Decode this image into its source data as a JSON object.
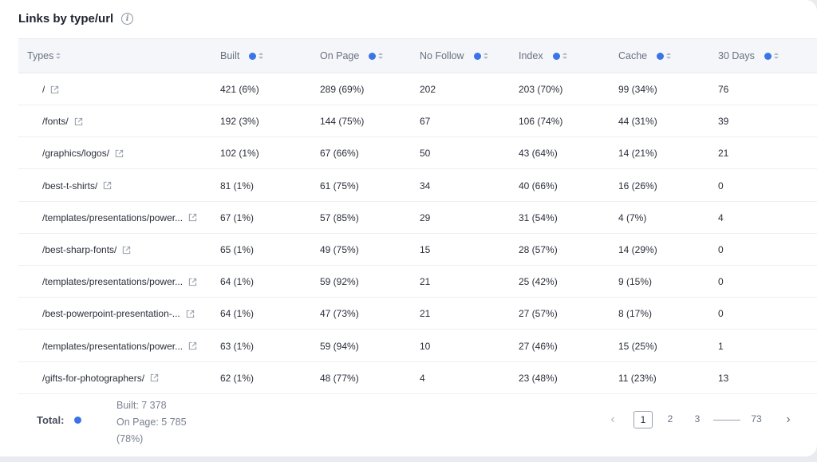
{
  "title": "Links by type/url",
  "columns": [
    {
      "label": "Types",
      "help": false
    },
    {
      "label": "Built",
      "help": true
    },
    {
      "label": "On Page",
      "help": true
    },
    {
      "label": "No Follow",
      "help": true
    },
    {
      "label": "Index",
      "help": true
    },
    {
      "label": "Cache",
      "help": true
    },
    {
      "label": "30 Days",
      "help": true
    }
  ],
  "rows": [
    {
      "url": "/",
      "built": "421 (6%)",
      "on_page": "289 (69%)",
      "no_follow": "202",
      "index": "203 (70%)",
      "cache": "99 (34%)",
      "days30": "76"
    },
    {
      "url": "/fonts/",
      "built": "192 (3%)",
      "on_page": "144 (75%)",
      "no_follow": "67",
      "index": "106 (74%)",
      "cache": "44 (31%)",
      "days30": "39"
    },
    {
      "url": "/graphics/logos/",
      "built": "102 (1%)",
      "on_page": "67 (66%)",
      "no_follow": "50",
      "index": "43 (64%)",
      "cache": "14 (21%)",
      "days30": "21"
    },
    {
      "url": "/best-t-shirts/",
      "built": "81 (1%)",
      "on_page": "61 (75%)",
      "no_follow": "34",
      "index": "40 (66%)",
      "cache": "16 (26%)",
      "days30": "0"
    },
    {
      "url": "/templates/presentations/power...",
      "built": "67 (1%)",
      "on_page": "57 (85%)",
      "no_follow": "29",
      "index": "31 (54%)",
      "cache": "4 (7%)",
      "days30": "4"
    },
    {
      "url": "/best-sharp-fonts/",
      "built": "65 (1%)",
      "on_page": "49 (75%)",
      "no_follow": "15",
      "index": "28 (57%)",
      "cache": "14 (29%)",
      "days30": "0"
    },
    {
      "url": "/templates/presentations/power...",
      "built": "64 (1%)",
      "on_page": "59 (92%)",
      "no_follow": "21",
      "index": "25 (42%)",
      "cache": "9 (15%)",
      "days30": "0"
    },
    {
      "url": "/best-powerpoint-presentation-...",
      "built": "64 (1%)",
      "on_page": "47 (73%)",
      "no_follow": "21",
      "index": "27 (57%)",
      "cache": "8 (17%)",
      "days30": "0"
    },
    {
      "url": "/templates/presentations/power...",
      "built": "63 (1%)",
      "on_page": "59 (94%)",
      "no_follow": "10",
      "index": "27 (46%)",
      "cache": "15 (25%)",
      "days30": "1"
    },
    {
      "url": "/gifts-for-photographers/",
      "built": "62 (1%)",
      "on_page": "48 (77%)",
      "no_follow": "4",
      "index": "23 (48%)",
      "cache": "11 (23%)",
      "days30": "13"
    }
  ],
  "footer": {
    "total_label": "Total:",
    "built_line": "Built: 7 378",
    "on_page_line": "On Page: 5 785",
    "on_page_pct": "(78%)"
  },
  "pagination": {
    "prev": "‹",
    "next": "›",
    "pages": [
      "1",
      "2",
      "3"
    ],
    "last": "73",
    "current": "1"
  },
  "colors": {
    "accent": "#3b74e6",
    "header_bg": "#f4f6f9",
    "background": "#e9ebf0"
  },
  "icons": [
    "info-icon",
    "help-dot-icon",
    "sort-icon",
    "external-link-icon",
    "chevron-left-icon",
    "chevron-right-icon"
  ]
}
